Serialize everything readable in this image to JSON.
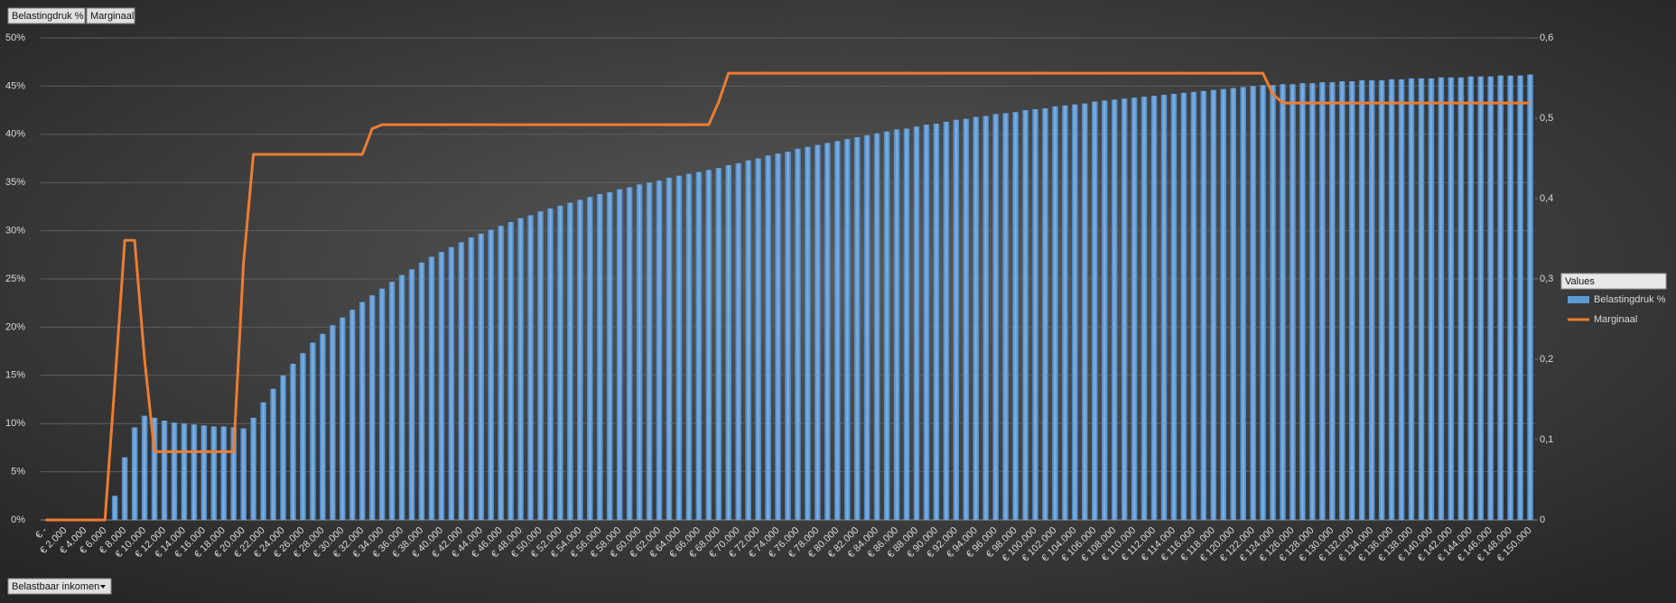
{
  "chart_data": {
    "type": "bar-line",
    "xlabel": "Belastbaar inkomen",
    "legend_title": "Values",
    "legend": "right",
    "grid": true,
    "categories": [
      "€ -",
      null,
      "€ 2.000",
      null,
      "€ 4.000",
      null,
      "€ 6.000",
      null,
      "€ 8.000",
      null,
      "€ 10.000",
      null,
      "€ 12.000",
      null,
      "€ 14.000",
      null,
      "€ 16.000",
      null,
      "€ 18.000",
      null,
      "€ 20.000",
      null,
      "€ 22.000",
      null,
      "€ 24.000",
      null,
      "€ 26.000",
      null,
      "€ 28.000",
      null,
      "€ 30.000",
      null,
      "€ 32.000",
      null,
      "€ 34.000",
      null,
      "€ 36.000",
      null,
      "€ 38.000",
      null,
      "€ 40.000",
      null,
      "€ 42.000",
      null,
      "€ 44.000",
      null,
      "€ 46.000",
      null,
      "€ 48.000",
      null,
      "€ 50.000",
      null,
      "€ 52.000",
      null,
      "€ 54.000",
      null,
      "€ 56.000",
      null,
      "€ 58.000",
      null,
      "€ 60.000",
      null,
      "€ 62.000",
      null,
      "€ 64.000",
      null,
      "€ 66.000",
      null,
      "€ 68.000",
      null,
      "€ 70.000",
      null,
      "€ 72.000",
      null,
      "€ 74.000",
      null,
      "€ 76.000",
      null,
      "€ 78.000",
      null,
      "€ 80.000",
      null,
      "€ 82.000",
      null,
      "€ 84.000",
      null,
      "€ 86.000",
      null,
      "€ 88.000",
      null,
      "€ 90.000",
      null,
      "€ 92.000",
      null,
      "€ 94.000",
      null,
      "€ 96.000",
      null,
      "€ 98.000",
      null,
      "€ 100.000",
      null,
      "€ 102.000",
      null,
      "€ 104.000",
      null,
      "€ 106.000",
      null,
      "€ 108.000",
      null,
      "€ 110.000",
      null,
      "€ 112.000",
      null,
      "€ 114.000",
      null,
      "€ 116.000",
      null,
      "€ 118.000",
      null,
      "€ 120.000",
      null,
      "€ 122.000",
      null,
      "€ 124.000",
      null,
      "€ 126.000",
      null,
      "€ 128.000",
      null,
      "€ 130.000",
      null,
      "€ 132.000",
      null,
      "€ 134.000",
      null,
      "€ 136.000",
      null,
      "€ 138.000",
      null,
      "€ 140.000",
      null,
      "€ 142.000",
      null,
      "€ 144.000",
      null,
      "€ 146.000",
      null,
      "€ 148.000",
      null,
      "€ 150.000"
    ],
    "series": [
      {
        "name": "Belastingdruk %",
        "color": "#5b9bd5",
        "type": "bar",
        "values": [
          0,
          0,
          0,
          0,
          0,
          0,
          0,
          2.5,
          6.5,
          9.6,
          10.8,
          10.6,
          10.3,
          10.1,
          10.0,
          9.9,
          9.8,
          9.7,
          9.7,
          9.6,
          9.5,
          10.6,
          12.2,
          13.6,
          15.0,
          16.2,
          17.3,
          18.4,
          19.3,
          20.2,
          21.0,
          21.8,
          22.6,
          23.3,
          24.0,
          24.7,
          25.4,
          26.0,
          26.7,
          27.3,
          27.8,
          28.3,
          28.8,
          29.3,
          29.7,
          30.1,
          30.5,
          30.9,
          31.3,
          31.6,
          32.0,
          32.3,
          32.6,
          32.9,
          33.2,
          33.5,
          33.8,
          34.0,
          34.3,
          34.5,
          34.8,
          35.0,
          35.2,
          35.5,
          35.7,
          35.9,
          36.1,
          36.3,
          36.5,
          36.8,
          37.0,
          37.3,
          37.5,
          37.8,
          38.0,
          38.2,
          38.5,
          38.7,
          38.9,
          39.1,
          39.3,
          39.5,
          39.7,
          39.9,
          40.1,
          40.3,
          40.5,
          40.6,
          40.8,
          41.0,
          41.1,
          41.3,
          41.5,
          41.6,
          41.8,
          41.9,
          42.1,
          42.2,
          42.3,
          42.5,
          42.6,
          42.7,
          42.9,
          43.0,
          43.1,
          43.2,
          43.4,
          43.5,
          43.6,
          43.7,
          43.8,
          43.9,
          44.0,
          44.1,
          44.2,
          44.3,
          44.4,
          44.5,
          44.6,
          44.7,
          44.8,
          44.9,
          45.0,
          45.1,
          45.1,
          45.2,
          45.2,
          45.3,
          45.3,
          45.4,
          45.4,
          45.5,
          45.5,
          45.6,
          45.6,
          45.6,
          45.7,
          45.7,
          45.8,
          45.8,
          45.8,
          45.9,
          45.9,
          45.9,
          46.0,
          46.0,
          46.0,
          46.1,
          46.1,
          46.1,
          46.2
        ]
      },
      {
        "name": "Marginaal",
        "color": "#ed7d31",
        "type": "line",
        "axis": "y2",
        "values": [
          0,
          0,
          0,
          0,
          0,
          0,
          0,
          0.17,
          0.348,
          0.348,
          0.2,
          0.085,
          0.085,
          0.085,
          0.085,
          0.085,
          0.085,
          0.085,
          0.085,
          0.085,
          0.32,
          0.455,
          0.455,
          0.455,
          0.455,
          0.455,
          0.455,
          0.455,
          0.455,
          0.455,
          0.455,
          0.455,
          0.455,
          0.487,
          0.492,
          0.492,
          0.492,
          0.492,
          0.492,
          0.492,
          0.492,
          0.492,
          0.492,
          0.492,
          0.492,
          0.492,
          0.492,
          0.492,
          0.492,
          0.492,
          0.492,
          0.492,
          0.492,
          0.492,
          0.492,
          0.492,
          0.492,
          0.492,
          0.492,
          0.492,
          0.492,
          0.492,
          0.492,
          0.492,
          0.492,
          0.492,
          0.492,
          0.492,
          0.52,
          0.556,
          0.556,
          0.556,
          0.556,
          0.556,
          0.556,
          0.556,
          0.556,
          0.556,
          0.556,
          0.556,
          0.556,
          0.556,
          0.556,
          0.556,
          0.556,
          0.556,
          0.556,
          0.556,
          0.556,
          0.556,
          0.556,
          0.556,
          0.556,
          0.556,
          0.556,
          0.556,
          0.556,
          0.556,
          0.556,
          0.556,
          0.556,
          0.556,
          0.556,
          0.556,
          0.556,
          0.556,
          0.556,
          0.556,
          0.556,
          0.556,
          0.556,
          0.556,
          0.556,
          0.556,
          0.556,
          0.556,
          0.556,
          0.556,
          0.556,
          0.556,
          0.556,
          0.556,
          0.556,
          0.556,
          0.53,
          0.519,
          0.519,
          0.519,
          0.519,
          0.519,
          0.519,
          0.519,
          0.519,
          0.519,
          0.519,
          0.519,
          0.519,
          0.519,
          0.519,
          0.519,
          0.519,
          0.519,
          0.519,
          0.519,
          0.519,
          0.519,
          0.519,
          0.519,
          0.519,
          0.519,
          0.519
        ]
      }
    ],
    "ylim": [
      0,
      50
    ],
    "yticks": [
      {
        "value": 0,
        "label": "0%"
      },
      {
        "value": 5,
        "label": "5%"
      },
      {
        "value": 10,
        "label": "10%"
      },
      {
        "value": 15,
        "label": "15%"
      },
      {
        "value": 20,
        "label": "20%"
      },
      {
        "value": 25,
        "label": "25%"
      },
      {
        "value": 30,
        "label": "30%"
      },
      {
        "value": 35,
        "label": "35%"
      },
      {
        "value": 40,
        "label": "40%"
      },
      {
        "value": 45,
        "label": "45%"
      },
      {
        "value": 50,
        "label": "50%"
      }
    ],
    "y2lim": [
      0,
      0.6
    ],
    "y2ticks": [
      0,
      {
        "value": 0.1,
        "label": "0,1"
      },
      {
        "value": 0.2,
        "label": "0,2"
      },
      {
        "value": 0.3,
        "label": "0,3"
      },
      {
        "value": 0.4,
        "label": "0,4"
      },
      {
        "value": 0.5,
        "label": "0,5"
      },
      {
        "value": 0.6,
        "label": "0,6"
      }
    ]
  }
}
